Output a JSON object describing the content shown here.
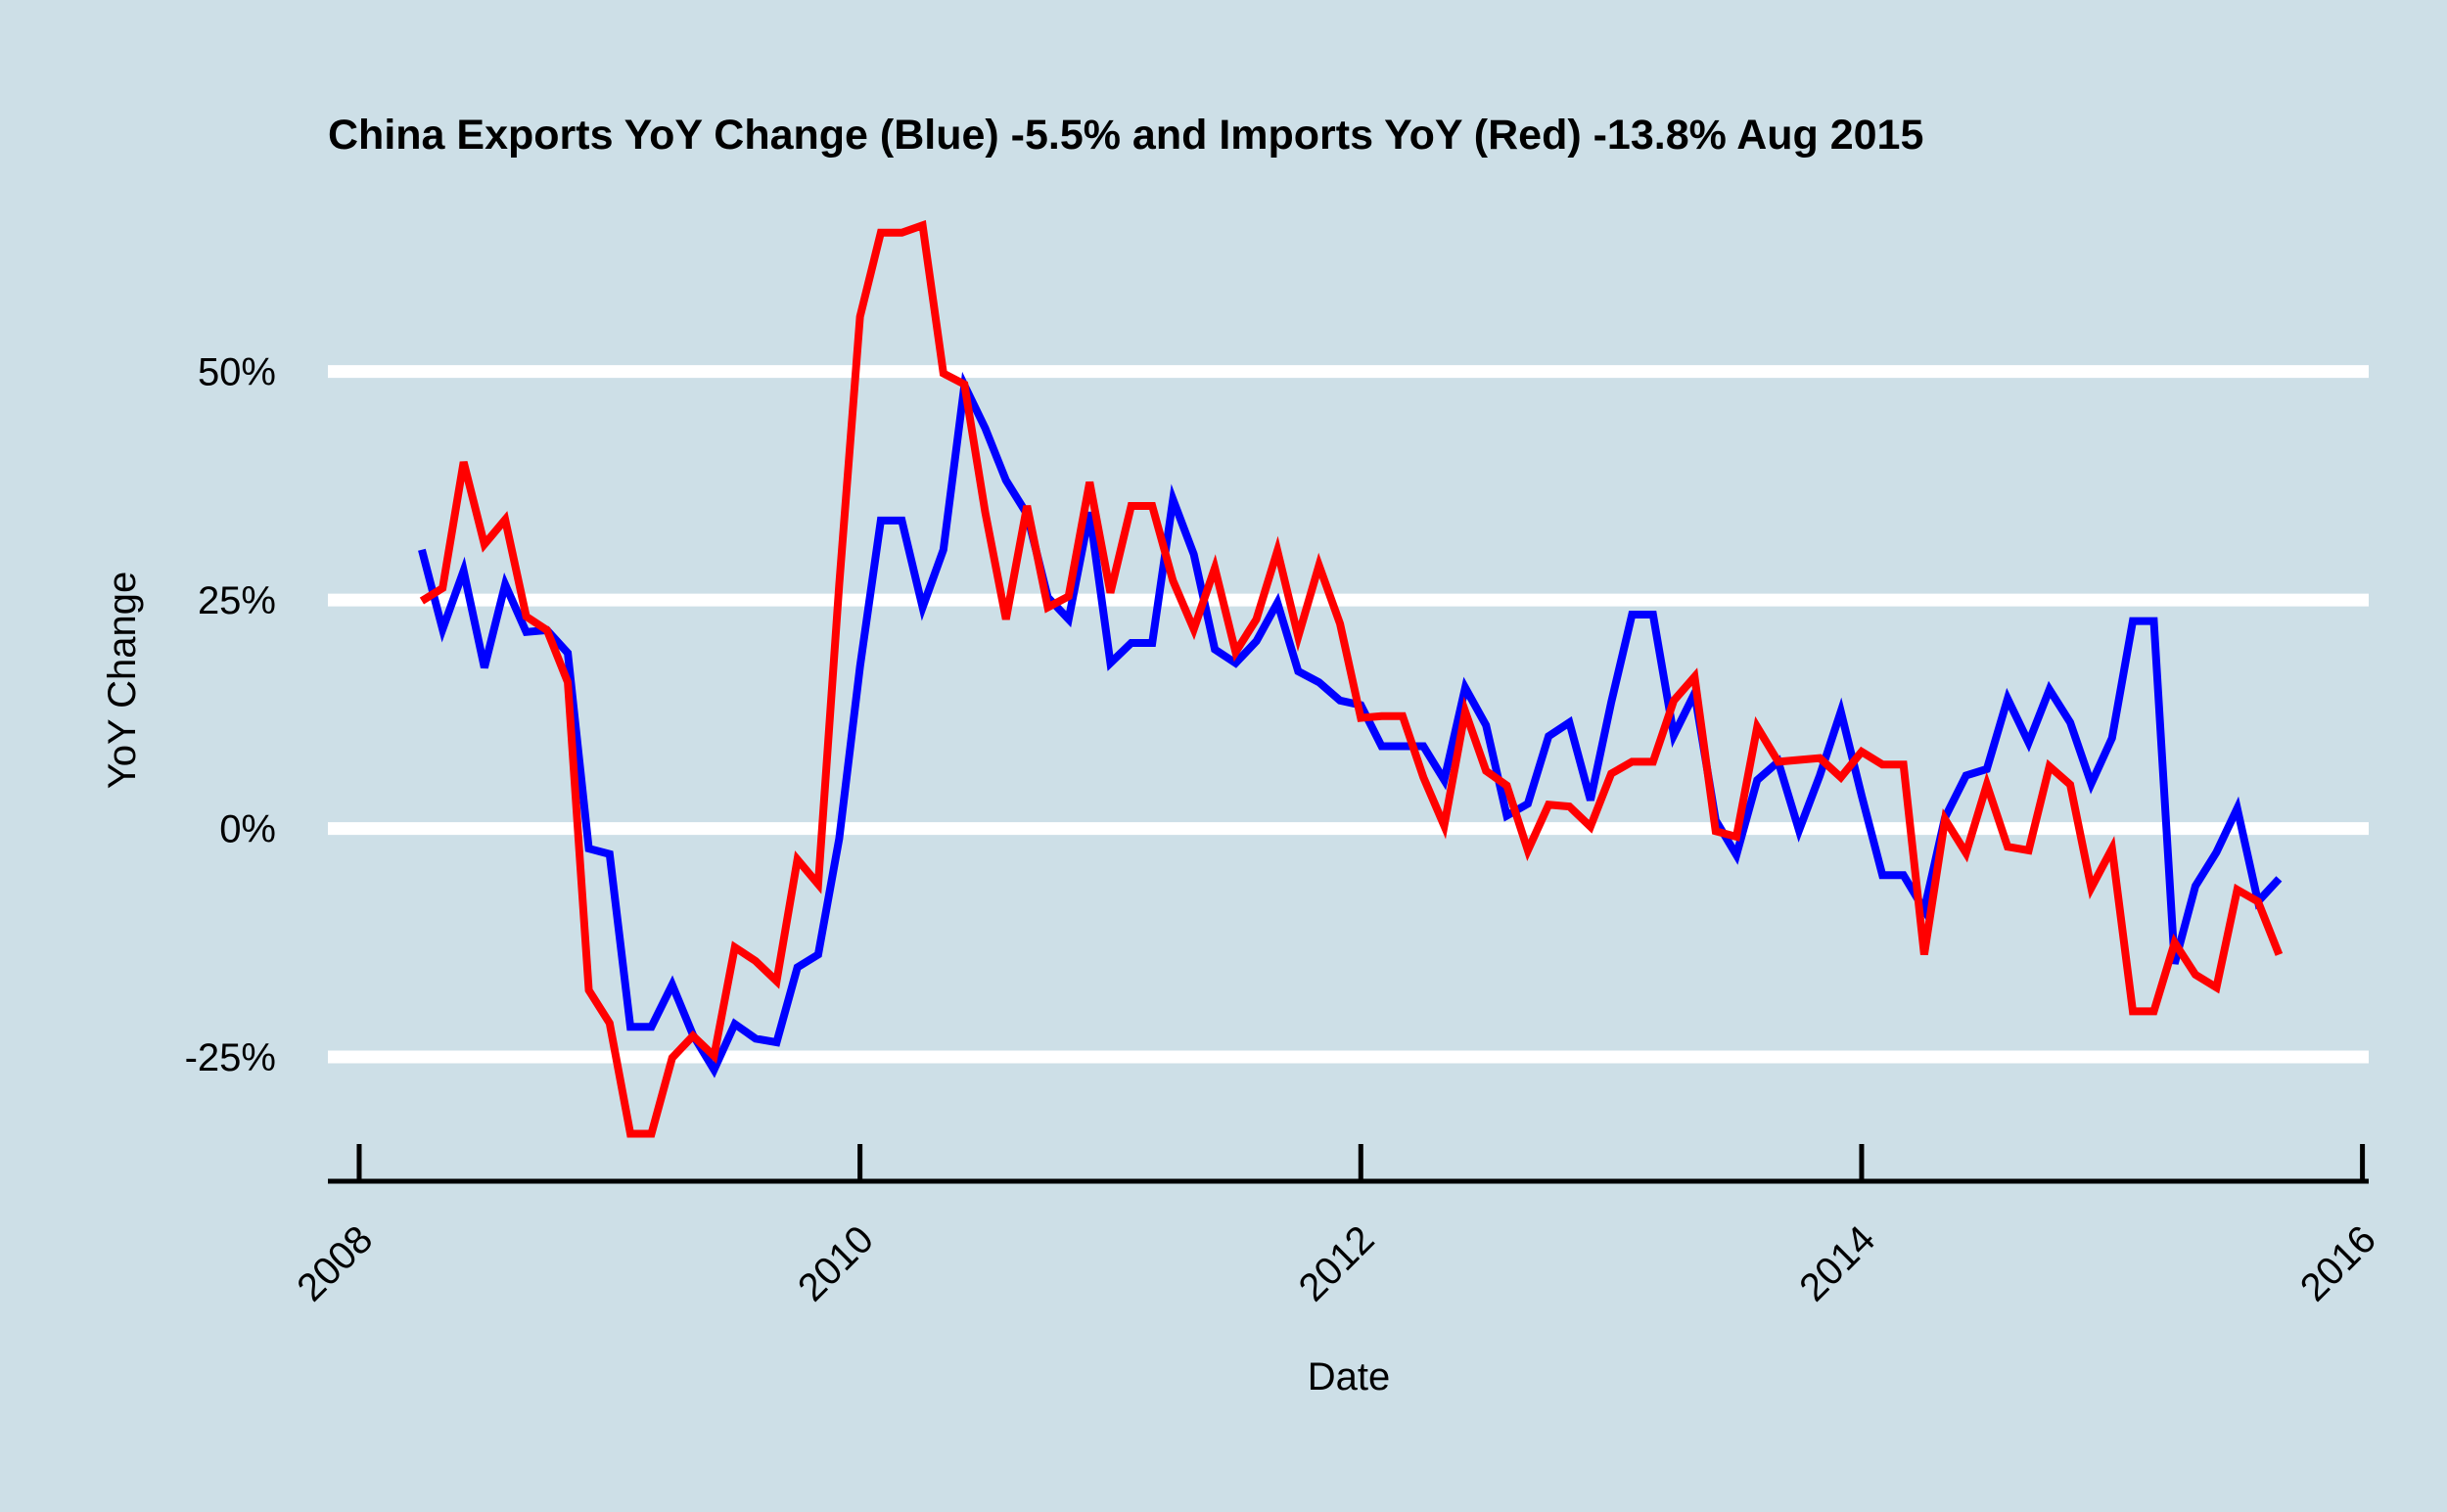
{
  "chart_data": {
    "type": "line",
    "title": "China Exports YoY Change (Blue) -5.5% and Imports YoY (Red) -13.8% Aug 2015",
    "x_label": "Date",
    "y_label": "YoY Change",
    "x": [
      2008.25,
      2008.333,
      2008.417,
      2008.5,
      2008.583,
      2008.667,
      2008.75,
      2008.833,
      2008.917,
      2009.0,
      2009.083,
      2009.167,
      2009.25,
      2009.333,
      2009.417,
      2009.5,
      2009.583,
      2009.667,
      2009.75,
      2009.833,
      2009.917,
      2010.0,
      2010.083,
      2010.167,
      2010.25,
      2010.333,
      2010.417,
      2010.5,
      2010.583,
      2010.667,
      2010.75,
      2010.833,
      2010.917,
      2011.0,
      2011.083,
      2011.167,
      2011.25,
      2011.333,
      2011.417,
      2011.5,
      2011.583,
      2011.667,
      2011.75,
      2011.833,
      2011.917,
      2012.0,
      2012.083,
      2012.167,
      2012.25,
      2012.333,
      2012.417,
      2012.5,
      2012.583,
      2012.667,
      2012.75,
      2012.833,
      2012.917,
      2013.0,
      2013.083,
      2013.167,
      2013.25,
      2013.333,
      2013.417,
      2013.5,
      2013.583,
      2013.667,
      2013.75,
      2013.833,
      2013.917,
      2014.0,
      2014.083,
      2014.167,
      2014.25,
      2014.333,
      2014.417,
      2014.5,
      2014.583,
      2014.667,
      2014.75,
      2014.833,
      2014.917,
      2015.0,
      2015.083,
      2015.167,
      2015.25,
      2015.333,
      2015.417,
      2015.5,
      2015.583,
      2015.667
    ],
    "series": [
      {
        "color": "#0000ff",
        "values": [
          30.5,
          21.8,
          28.2,
          17.6,
          26.7,
          21.5,
          21.7,
          19.2,
          -2.2,
          -2.8,
          -21.7,
          -21.7,
          -17.1,
          -22.6,
          -26.4,
          -21.4,
          -23.0,
          -23.4,
          -15.2,
          -13.8,
          -1.1,
          17.7,
          33.7,
          33.7,
          24.2,
          30.5,
          48.5,
          43.8,
          38.1,
          34.4,
          25.3,
          22.9,
          34.6,
          18.1,
          20.3,
          20.3,
          36.0,
          30.0,
          19.6,
          18.1,
          20.5,
          24.7,
          17.2,
          16.0,
          14.0,
          13.5,
          9.0,
          9.0,
          9.0,
          5.3,
          15.4,
          11.3,
          1.4,
          2.7,
          10.1,
          11.6,
          3.1,
          13.8,
          23.4,
          23.4,
          10.2,
          14.8,
          0.9,
          -2.9,
          5.3,
          7.3,
          -0.2,
          5.8,
          12.8,
          3.6,
          -5.1,
          -5.1,
          -8.9,
          1.2,
          5.8,
          6.5,
          14.2,
          9.4,
          15.2,
          11.6,
          4.9,
          9.9,
          22.7,
          22.7,
          -14.8,
          -6.3,
          -2.6,
          2.2,
          -8.0,
          -5.5
        ]
      },
      {
        "color": "#ff0000",
        "values": [
          24.9,
          26.3,
          40.1,
          31.1,
          33.8,
          23.2,
          21.7,
          16.0,
          -17.7,
          -21.3,
          -33.4,
          -33.4,
          -25.1,
          -22.7,
          -24.9,
          -13.0,
          -14.5,
          -16.7,
          -3.4,
          -6.1,
          26.7,
          56.0,
          65.2,
          65.2,
          66.0,
          49.8,
          48.6,
          34.6,
          22.9,
          35.3,
          24.2,
          25.4,
          37.9,
          25.8,
          35.3,
          35.3,
          27.1,
          21.8,
          28.5,
          19.3,
          22.9,
          30.4,
          21.0,
          28.8,
          22.4,
          12.1,
          12.3,
          12.3,
          5.6,
          0.3,
          12.8,
          6.3,
          4.7,
          -2.4,
          2.6,
          2.4,
          0.2,
          6.0,
          7.3,
          7.3,
          14.0,
          16.6,
          -0.3,
          -0.9,
          11.1,
          7.3,
          7.5,
          7.7,
          5.6,
          8.4,
          7.0,
          7.0,
          -13.8,
          1.0,
          -2.7,
          4.8,
          -2.0,
          -2.4,
          6.8,
          4.8,
          -6.5,
          -2.2,
          -20.0,
          -20.0,
          -12.5,
          -16.0,
          -17.4,
          -6.7,
          -8.0,
          -13.8
        ]
      }
    ],
    "xlim": [
      2007.875,
      2016.025
    ],
    "xticks": [
      2008,
      2010,
      2012,
      2014,
      2016
    ],
    "ylim": [
      -38.6,
      68.6
    ],
    "yticks": [
      {
        "value": -25,
        "label": "-25%"
      },
      {
        "value": 0,
        "label": "0%"
      },
      {
        "value": 25,
        "label": "25%"
      },
      {
        "value": 50,
        "label": "50%"
      }
    ],
    "grid": true
  }
}
